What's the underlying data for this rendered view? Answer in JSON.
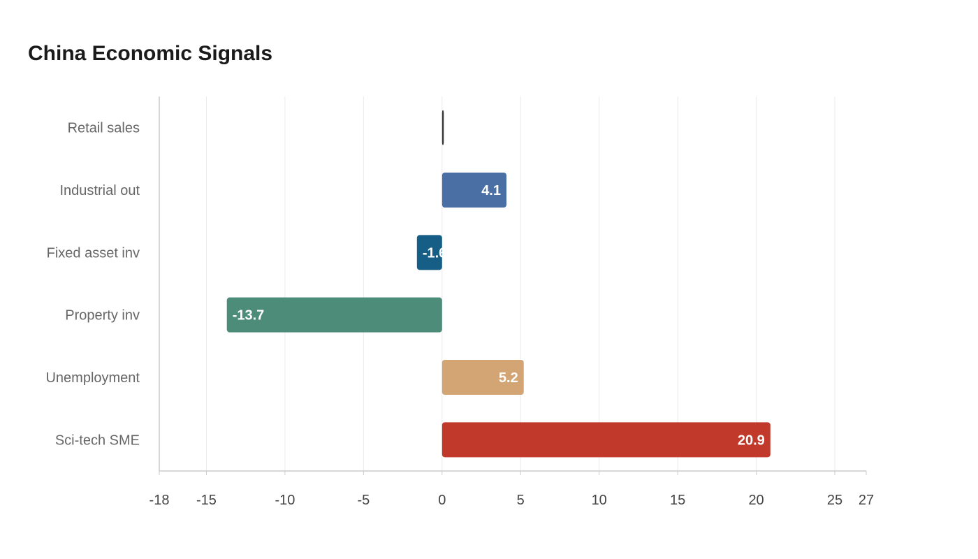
{
  "chart_data": {
    "type": "bar",
    "orientation": "horizontal",
    "title": "China Economic Signals",
    "xlabel": "",
    "ylabel": "",
    "categories": [
      "Retail sales",
      "Industrial out",
      "Fixed asset inv",
      "Property inv",
      "Unemployment",
      "Sci-tech SME"
    ],
    "values": [
      0.1,
      4.1,
      -1.6,
      -13.7,
      5.2,
      20.9
    ],
    "colors": [
      "#3a3a3a",
      "#4a6fa5",
      "#175e86",
      "#4e8c7a",
      "#d4a574",
      "#c0392b"
    ],
    "xlim": [
      -18,
      27
    ],
    "xticks": [
      -18,
      -15,
      -10,
      -5,
      0,
      5,
      10,
      15,
      20,
      25,
      27
    ],
    "grid": true,
    "legend": "none"
  }
}
